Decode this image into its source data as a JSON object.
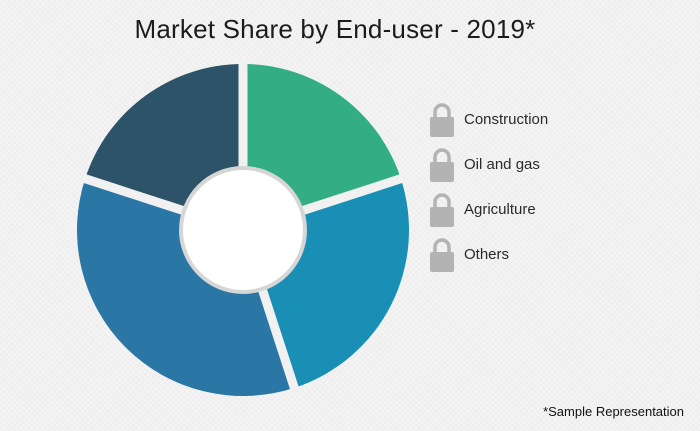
{
  "chart_data": {
    "type": "pie",
    "title": "Market Share by End-user - 2019*",
    "categories": [
      "Construction",
      "Oil and gas",
      "Agriculture",
      "Others"
    ],
    "values": [
      20,
      25,
      35,
      20
    ],
    "colors": [
      "#33ad84",
      "#1a8fb5",
      "#2a76a4",
      "#2c5368"
    ],
    "donut": true,
    "legend_position": "right"
  },
  "legend": {
    "items": [
      {
        "label": "Construction",
        "icon": "lock-icon"
      },
      {
        "label": "Oil and gas",
        "icon": "lock-icon"
      },
      {
        "label": "Agriculture",
        "icon": "lock-icon"
      },
      {
        "label": "Others",
        "icon": "lock-icon"
      }
    ]
  },
  "footnote": "*Sample Representation"
}
